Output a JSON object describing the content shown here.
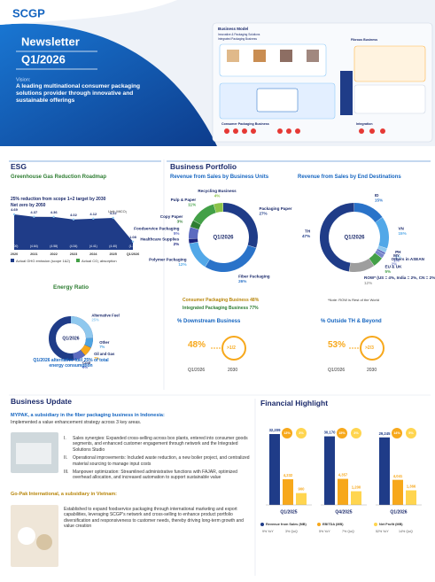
{
  "header": {
    "logo": "SCGP",
    "title": "Newsletter",
    "period": "Q1/2026",
    "vision_label": "Vision:",
    "vision": "A leading multinational consumer packaging solutions provider through innovative and sustainable offerings"
  },
  "business_model": {
    "title": "Business Model",
    "subtitle": "Innovative & Packaging Solutions",
    "integrated": "Integrated Packaging Business",
    "fibrous": "Fibrous Business",
    "consumer": "Consumer Packaging Business",
    "integration": "Integration"
  },
  "esg": {
    "title": "ESG",
    "roadmap": "Greenhouse Gas Reduction Roadmap",
    "targets": [
      "25% reduction from scope 1+2 target by 2030",
      "Net zero by 2050"
    ],
    "unit": "Unit: MtCO₂",
    "years": [
      "2020",
      "2021",
      "2022",
      "2023",
      "2024",
      "2025",
      "Q1/2026"
    ],
    "emissions": [
      4.69,
      4.37,
      4.36,
      4.02,
      4.12,
      4.22,
      1.08
    ],
    "absorption": [
      "(5.00)",
      "(4.64)",
      "(4.58)",
      "(4.34)",
      "(4.41)",
      "(4.40)",
      "(1.18)"
    ],
    "legend": [
      "Actual GHG emission (scope 1&2)",
      "Actual CO₂ absorption"
    ],
    "energy": {
      "title": "Energy Ratio",
      "center": "Q1/2026",
      "segments": [
        {
          "name": "Alternative Fuel",
          "value": 25,
          "label": "25%",
          "color": "#8fc8ee"
        },
        {
          "name": "Other",
          "value": 7,
          "label": "7%",
          "color": "#4fa3e0"
        },
        {
          "name": "Oil and Gas",
          "value": 7,
          "label": "7%",
          "color": "#f7a81b"
        },
        {
          "name": "Coal",
          "value": 9,
          "label": "9%",
          "color": "#5c6bc0"
        }
      ],
      "note": "Q1/2026 alternative fuel 25% of total energy consumption"
    }
  },
  "portfolio": {
    "title": "Business Portfolio",
    "units_title": "Revenue from Sales by Business Units",
    "dest_title": "Revenue from Sales by End Destinations",
    "center": "Q1/2026",
    "units": [
      {
        "name": "Packaging Paper",
        "value": 27,
        "label": "27%",
        "color": "#1f3c88"
      },
      {
        "name": "Fiber Packaging",
        "value": 26,
        "label": "26%",
        "color": "#2a73c9"
      },
      {
        "name": "Polymer Packaging",
        "value": 12,
        "label": "12%",
        "color": "#52a8e8"
      },
      {
        "name": "Healthcare Supplies",
        "value": 2,
        "label": "2%",
        "color": "#1a237e"
      },
      {
        "name": "Foodservice Packaging",
        "value": 5,
        "label": "5%",
        "color": "#5c6bc0"
      },
      {
        "name": "Copy Paper",
        "value": 3,
        "label": "3%",
        "color": "#2e7d32"
      },
      {
        "name": "Pulp & Paper",
        "value": 11,
        "label": "11%",
        "color": "#43a047"
      },
      {
        "name": "Recycling Business",
        "value": 4,
        "label": "4%",
        "color": "#8bc34a"
      }
    ],
    "destinations": [
      {
        "name": "ID",
        "value": 15,
        "label": "15%",
        "color": "#2a73c9"
      },
      {
        "name": "VN",
        "value": 15,
        "label": "15%",
        "color": "#52a8e8"
      },
      {
        "name": "PH",
        "value": 2,
        "label": "2%",
        "color": "#8fc8ee"
      },
      {
        "name": "MY",
        "value": 1,
        "label": "1%",
        "color": "#5c6bc0"
      },
      {
        "name": "Others in ASEAN",
        "value": 2,
        "label": "2%",
        "color": "#7986cb"
      },
      {
        "name": "EU & UK",
        "value": 5,
        "label": "5%",
        "color": "#43a047"
      },
      {
        "name": "ROW* (US = 4%, India = 2%, CN = 2%, Others = 4%)",
        "value": 12,
        "label": "12%",
        "color": "#9e9e9e"
      },
      {
        "name": "TH",
        "value": 47,
        "label": "47%",
        "color": "#1f3c88"
      }
    ],
    "consumer": "Consumer Packaging Business 48%",
    "integrated": "Integrated Packaging Business 77%",
    "note": "*Note: ROW is Rest of the World",
    "downstream": {
      "title": "% Downstream Business",
      "current": "48%",
      "target": ">1/2",
      "current_period": "Q1/2026",
      "target_period": "2030"
    },
    "outside": {
      "title": "% Outside TH & Beyond",
      "current": "53%",
      "target": ">2/3",
      "current_period": "Q1/2026",
      "target_period": "2030"
    }
  },
  "update": {
    "title": "Business Update",
    "mypak_title": "MYPAK, a subsidiary in the fiber packaging business in Indonesia:",
    "mypak_intro": "Implemented a value enhancement strategy across 3 key areas.",
    "items": [
      {
        "marker": "I.",
        "text": "Sales synergies: Expanded cross-selling across box plants, entered into consumer goods segments, and enhanced customer engagement through network and the Integrated Solutions Studio"
      },
      {
        "marker": "II.",
        "text": "Operational improvements: Included waste reduction, a new boiler project, and centralized material sourcing to manage input costs"
      },
      {
        "marker": "III.",
        "text": "Manpower optimization: Streamlined administrative functions with FAJAR, optimized overhead allocation, and increased automation to support sustainable value"
      }
    ],
    "gopak_title": "Go-Pak International, a subsidiary in Vietnam:",
    "gopak": "Established to expand foodservice packaging through international marketing and export capabilities, leveraging SCGP's network and cross-selling to enhance product portfolio diversification and responsiveness to customer needs, thereby driving long-term growth and value creation"
  },
  "financial": {
    "title": "Financial Highlight",
    "periods": [
      "Q1/2025",
      "Q4/2025",
      "Q1/2026"
    ],
    "series": [
      {
        "name": "Revenue from Sales (MB)",
        "color": "#1f3c88",
        "values": [
          32209,
          30170,
          29245
        ],
        "value_labels": [
          "32,209",
          "30,170",
          "29,245"
        ],
        "changes": [
          "9% YoY",
          "3% QoQ"
        ]
      },
      {
        "name": "EBITDA (MB)",
        "color": "#f7a81b",
        "values": [
          4232,
          4357,
          4041
        ],
        "value_labels": [
          "4,232",
          "4,357",
          "4,041"
        ],
        "changes": [
          "5% YoY",
          "7% QoQ"
        ]
      },
      {
        "name": "Net Profit (MB)",
        "color": "#ffd54f",
        "values": [
          900,
          1200,
          1366
        ],
        "value_labels": [
          "900",
          "1,200",
          "1,366"
        ],
        "changes": [
          "52% YoY",
          "14% QoQ"
        ]
      }
    ],
    "margins": [
      [
        "13%",
        "3%"
      ],
      [
        "15%",
        "3%"
      ],
      [
        "14%",
        "5%"
      ]
    ]
  }
}
